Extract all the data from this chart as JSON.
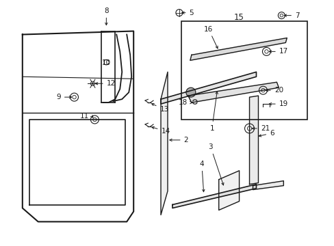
{
  "bg_color": "#ffffff",
  "fig_width": 4.89,
  "fig_height": 3.6,
  "dpi": 100,
  "line_color": "#1a1a1a",
  "label_color": "#1a1a1a",
  "font_size": 7.5
}
